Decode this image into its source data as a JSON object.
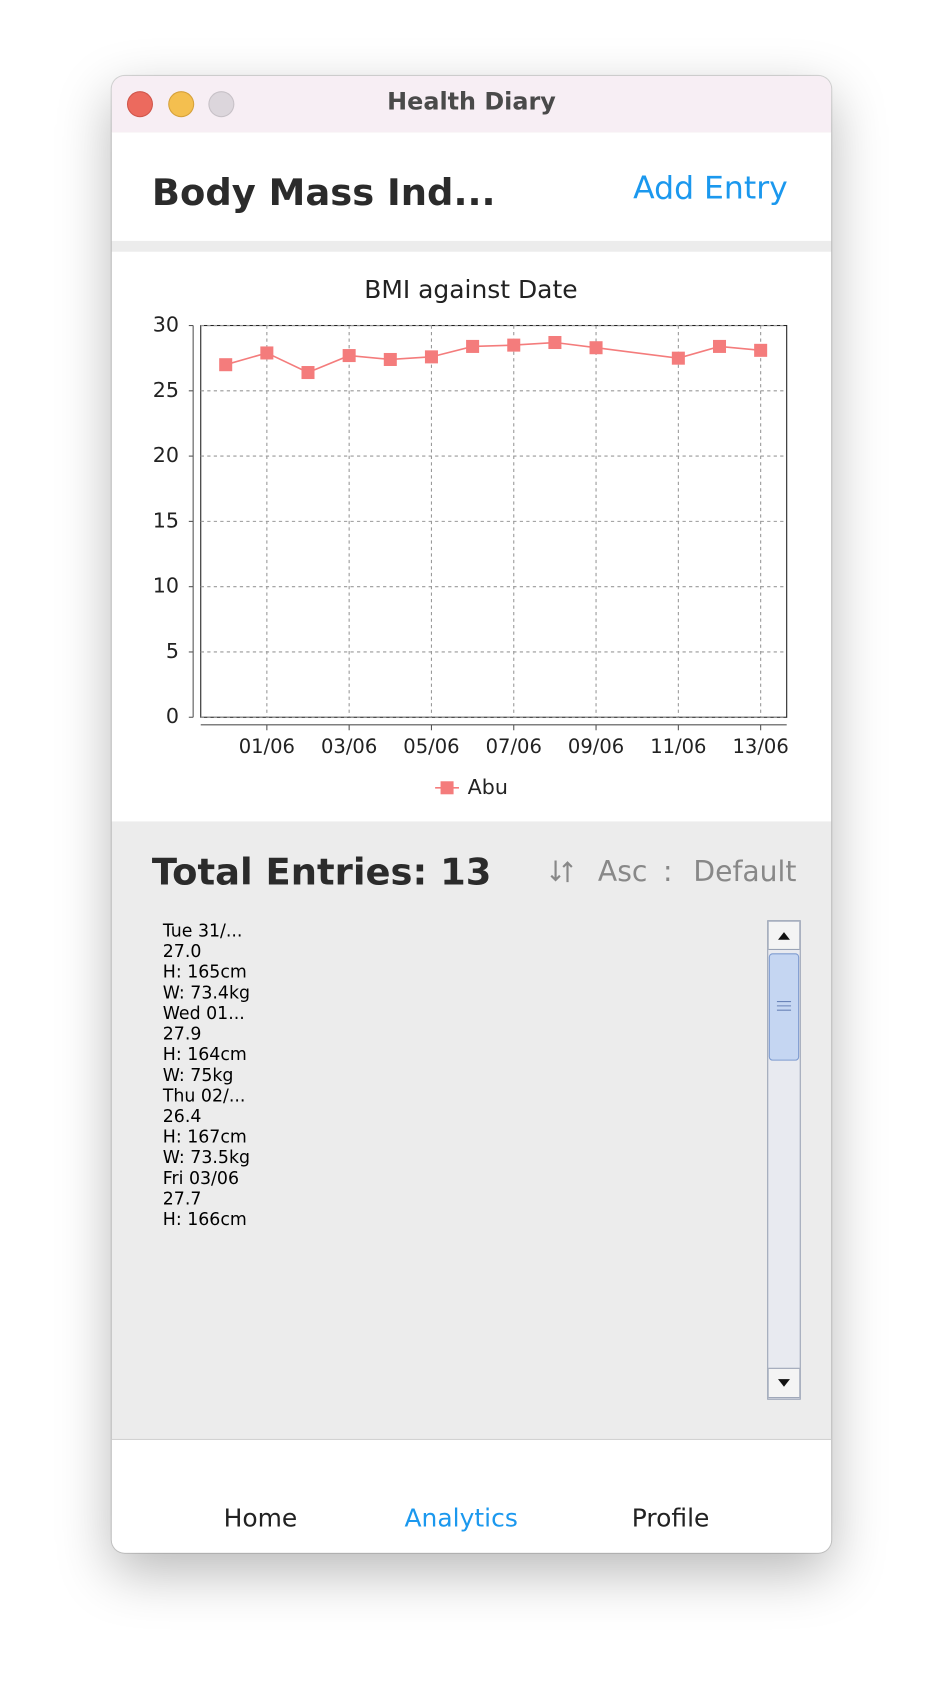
{
  "window": {
    "title": "Health Diary"
  },
  "header": {
    "title": "Body Mass Ind...",
    "action": "Add Entry"
  },
  "chart_data": {
    "type": "line",
    "title": "BMI against Date",
    "x": [
      "31/05",
      "01/06",
      "02/06",
      "03/06",
      "04/06",
      "05/06",
      "06/06",
      "07/06",
      "08/06",
      "09/06",
      "11/06",
      "12/06",
      "13/06"
    ],
    "series": [
      {
        "name": "Abu",
        "color": "#f47c7c",
        "values": [
          27.0,
          27.9,
          26.4,
          27.7,
          27.4,
          27.6,
          28.4,
          28.5,
          28.7,
          28.3,
          27.5,
          28.4,
          28.1
        ]
      }
    ],
    "xticks": [
      "01/06",
      "03/06",
      "05/06",
      "07/06",
      "09/06",
      "11/06",
      "13/06"
    ],
    "ylim": [
      0,
      30
    ],
    "yticks": [
      0,
      5,
      10,
      15,
      20,
      25,
      30
    ],
    "grid": true,
    "legend": "bottom"
  },
  "summary": {
    "total": "Total Entries: 13",
    "order": "Asc",
    "separator": ":",
    "sort": "Default"
  },
  "entries": [
    {
      "date": "Tue 31/...",
      "bmi": "27.0",
      "height": "H: 165cm",
      "weight": "W: 73.4kg"
    },
    {
      "date": "Wed 01...",
      "bmi": "27.9",
      "height": "H: 164cm",
      "weight": "W: 75kg"
    },
    {
      "date": "Thu 02/...",
      "bmi": "26.4",
      "height": "H: 167cm",
      "weight": "W: 73.5kg"
    },
    {
      "date": "Fri 03/06",
      "bmi": "27.7",
      "height": "H: 166cm"
    }
  ],
  "nav": [
    {
      "label": "Home"
    },
    {
      "label": "Analytics"
    },
    {
      "label": "Profile"
    }
  ]
}
